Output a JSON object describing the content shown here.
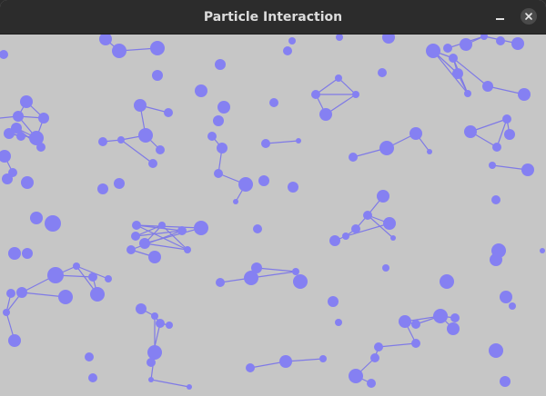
{
  "window": {
    "title": "Particle Interaction",
    "minimize_icon": "minimize-icon",
    "close_icon": "close-icon"
  },
  "colors": {
    "titlebar": "#2c2c2c",
    "title_text": "#dcdcdc",
    "canvas_bg": "#c6c6c6",
    "particle": "#8580f2",
    "link": "#7f7ae6"
  },
  "simulation": {
    "particles": [
      [
        116,
        43,
        7
      ],
      [
        131,
        56,
        8
      ],
      [
        173,
        53,
        8
      ],
      [
        173,
        83,
        6
      ],
      [
        4,
        60,
        5
      ],
      [
        242,
        71,
        6
      ],
      [
        321,
        45,
        4
      ],
      [
        316,
        56,
        5
      ],
      [
        373,
        41,
        4
      ],
      [
        427,
        41,
        7
      ],
      [
        476,
        56,
        8
      ],
      [
        492,
        53,
        5
      ],
      [
        512,
        49,
        7
      ],
      [
        532,
        40,
        4
      ],
      [
        550,
        45,
        5
      ],
      [
        569,
        48,
        7
      ],
      [
        503,
        81,
        6
      ],
      [
        498,
        64,
        5
      ],
      [
        514,
        103,
        4
      ],
      [
        536,
        95,
        6
      ],
      [
        576,
        104,
        7
      ],
      [
        557,
        131,
        5
      ],
      [
        560,
        148,
        6
      ],
      [
        546,
        162,
        5
      ],
      [
        517,
        145,
        7
      ],
      [
        541,
        182,
        4
      ],
      [
        580,
        187,
        7
      ],
      [
        420,
        80,
        5
      ],
      [
        372,
        86,
        4
      ],
      [
        347,
        104,
        5
      ],
      [
        391,
        104,
        4
      ],
      [
        358,
        126,
        7
      ],
      [
        301,
        113,
        5
      ],
      [
        221,
        100,
        7
      ],
      [
        246,
        118,
        7
      ],
      [
        240,
        133,
        6
      ],
      [
        233,
        150,
        5
      ],
      [
        244,
        163,
        6
      ],
      [
        154,
        116,
        7
      ],
      [
        185,
        124,
        5
      ],
      [
        113,
        156,
        5
      ],
      [
        133,
        154,
        4
      ],
      [
        160,
        149,
        8
      ],
      [
        176,
        165,
        5
      ],
      [
        168,
        180,
        5
      ],
      [
        29,
        112,
        7
      ],
      [
        48,
        130,
        6
      ],
      [
        20,
        128,
        6
      ],
      [
        18,
        141,
        6
      ],
      [
        10,
        147,
        6
      ],
      [
        23,
        150,
        5
      ],
      [
        40,
        152,
        8
      ],
      [
        45,
        162,
        5
      ],
      [
        5,
        172,
        7
      ],
      [
        14,
        190,
        5
      ],
      [
        30,
        201,
        7
      ],
      [
        8,
        197,
        6
      ],
      [
        292,
        158,
        5
      ],
      [
        328,
        155,
        3
      ],
      [
        388,
        173,
        5
      ],
      [
        425,
        163,
        8
      ],
      [
        457,
        147,
        7
      ],
      [
        472,
        167,
        3
      ],
      [
        270,
        203,
        8
      ],
      [
        290,
        199,
        6
      ],
      [
        322,
        206,
        6
      ],
      [
        240,
        191,
        5
      ],
      [
        259,
        222,
        3
      ],
      [
        113,
        208,
        6
      ],
      [
        131,
        202,
        6
      ],
      [
        545,
        220,
        5
      ],
      [
        421,
        216,
        7
      ],
      [
        404,
        237,
        5
      ],
      [
        428,
        246,
        7
      ],
      [
        391,
        252,
        5
      ],
      [
        380,
        260,
        4
      ],
      [
        432,
        262,
        3
      ],
      [
        368,
        265,
        6
      ],
      [
        40,
        240,
        7
      ],
      [
        58,
        246,
        9
      ],
      [
        16,
        279,
        7
      ],
      [
        30,
        279,
        6
      ],
      [
        221,
        251,
        8
      ],
      [
        200,
        254,
        5
      ],
      [
        178,
        248,
        4
      ],
      [
        150,
        248,
        5
      ],
      [
        149,
        260,
        5
      ],
      [
        159,
        268,
        6
      ],
      [
        144,
        275,
        5
      ],
      [
        170,
        283,
        7
      ],
      [
        206,
        275,
        4
      ],
      [
        283,
        252,
        5
      ],
      [
        548,
        276,
        8
      ],
      [
        545,
        286,
        7
      ],
      [
        596,
        276,
        3
      ],
      [
        424,
        295,
        4
      ],
      [
        84,
        293,
        4
      ],
      [
        61,
        303,
        9
      ],
      [
        102,
        305,
        5
      ],
      [
        119,
        307,
        4
      ],
      [
        72,
        327,
        8
      ],
      [
        107,
        324,
        8
      ],
      [
        24,
        322,
        6
      ],
      [
        12,
        323,
        5
      ],
      [
        7,
        344,
        4
      ],
      [
        16,
        375,
        7
      ],
      [
        242,
        311,
        5
      ],
      [
        276,
        306,
        8
      ],
      [
        282,
        295,
        6
      ],
      [
        325,
        299,
        4
      ],
      [
        330,
        310,
        8
      ],
      [
        491,
        310,
        8
      ],
      [
        556,
        327,
        7
      ],
      [
        563,
        337,
        4
      ],
      [
        366,
        332,
        6
      ],
      [
        372,
        355,
        4
      ],
      [
        155,
        340,
        6
      ],
      [
        170,
        348,
        4
      ],
      [
        176,
        356,
        5
      ],
      [
        186,
        358,
        4
      ],
      [
        445,
        354,
        7
      ],
      [
        457,
        357,
        5
      ],
      [
        484,
        348,
        8
      ],
      [
        500,
        350,
        5
      ],
      [
        498,
        362,
        7
      ],
      [
        457,
        378,
        5
      ],
      [
        416,
        382,
        5
      ],
      [
        412,
        394,
        5
      ],
      [
        170,
        388,
        8
      ],
      [
        166,
        399,
        5
      ],
      [
        98,
        393,
        5
      ],
      [
        102,
        416,
        5
      ],
      [
        166,
        418,
        3
      ],
      [
        208,
        426,
        3
      ],
      [
        275,
        405,
        5
      ],
      [
        314,
        398,
        7
      ],
      [
        355,
        395,
        4
      ],
      [
        391,
        414,
        8
      ],
      [
        408,
        422,
        5
      ],
      [
        545,
        386,
        8
      ],
      [
        555,
        420,
        6
      ]
    ],
    "links": [
      [
        131,
        56,
        173,
        53
      ],
      [
        116,
        43,
        131,
        56
      ],
      [
        476,
        56,
        503,
        81
      ],
      [
        503,
        81,
        514,
        103
      ],
      [
        476,
        56,
        514,
        103
      ],
      [
        498,
        64,
        536,
        95
      ],
      [
        536,
        95,
        576,
        104
      ],
      [
        492,
        53,
        532,
        40
      ],
      [
        532,
        40,
        569,
        48
      ],
      [
        512,
        49,
        532,
        40
      ],
      [
        503,
        81,
        498,
        64
      ],
      [
        514,
        103,
        498,
        64
      ],
      [
        476,
        56,
        498,
        64
      ],
      [
        546,
        162,
        557,
        131
      ],
      [
        517,
        145,
        557,
        131
      ],
      [
        517,
        145,
        546,
        162
      ],
      [
        541,
        182,
        580,
        187
      ],
      [
        557,
        131,
        560,
        148
      ],
      [
        347,
        104,
        372,
        86
      ],
      [
        372,
        86,
        391,
        104
      ],
      [
        347,
        104,
        391,
        104
      ],
      [
        358,
        126,
        347,
        104
      ],
      [
        358,
        126,
        391,
        104
      ],
      [
        233,
        150,
        244,
        163
      ],
      [
        244,
        163,
        240,
        191
      ],
      [
        240,
        191,
        270,
        203
      ],
      [
        259,
        222,
        270,
        203
      ],
      [
        154,
        116,
        185,
        124
      ],
      [
        154,
        116,
        160,
        149
      ],
      [
        113,
        156,
        133,
        154
      ],
      [
        133,
        154,
        160,
        149
      ],
      [
        160,
        149,
        176,
        165
      ],
      [
        133,
        154,
        168,
        180
      ],
      [
        29,
        112,
        48,
        130
      ],
      [
        29,
        112,
        20,
        128
      ],
      [
        20,
        128,
        48,
        130
      ],
      [
        18,
        141,
        40,
        152
      ],
      [
        10,
        147,
        40,
        152
      ],
      [
        20,
        128,
        40,
        152
      ],
      [
        18,
        141,
        45,
        162
      ],
      [
        10,
        147,
        23,
        150
      ],
      [
        48,
        130,
        40,
        152
      ],
      [
        0,
        130,
        20,
        128
      ],
      [
        5,
        172,
        14,
        190
      ],
      [
        292,
        158,
        328,
        155
      ],
      [
        388,
        173,
        425,
        163
      ],
      [
        425,
        163,
        457,
        147
      ],
      [
        457,
        147,
        472,
        167
      ],
      [
        404,
        237,
        421,
        216
      ],
      [
        391,
        252,
        404,
        237
      ],
      [
        380,
        260,
        391,
        252
      ],
      [
        368,
        265,
        380,
        260
      ],
      [
        404,
        237,
        428,
        246
      ],
      [
        380,
        260,
        428,
        246
      ],
      [
        432,
        262,
        404,
        237
      ],
      [
        150,
        248,
        221,
        251
      ],
      [
        150,
        248,
        200,
        254
      ],
      [
        149,
        260,
        200,
        254
      ],
      [
        159,
        268,
        221,
        251
      ],
      [
        144,
        275,
        200,
        254
      ],
      [
        150,
        248,
        206,
        275
      ],
      [
        178,
        248,
        206,
        275
      ],
      [
        144,
        275,
        170,
        283
      ],
      [
        159,
        268,
        178,
        248
      ],
      [
        149,
        260,
        178,
        248
      ],
      [
        159,
        268,
        206,
        275
      ],
      [
        61,
        303,
        84,
        293
      ],
      [
        84,
        293,
        119,
        307
      ],
      [
        61,
        303,
        102,
        305
      ],
      [
        84,
        293,
        107,
        324
      ],
      [
        61,
        303,
        24,
        322
      ],
      [
        24,
        322,
        7,
        344
      ],
      [
        12,
        323,
        7,
        344
      ],
      [
        7,
        344,
        16,
        375
      ],
      [
        102,
        305,
        107,
        324
      ],
      [
        24,
        322,
        72,
        327
      ],
      [
        242,
        311,
        276,
        306
      ],
      [
        276,
        306,
        325,
        299
      ],
      [
        282,
        295,
        325,
        299
      ],
      [
        155,
        340,
        170,
        348
      ],
      [
        170,
        348,
        176,
        356
      ],
      [
        176,
        356,
        186,
        358
      ],
      [
        170,
        348,
        170,
        388
      ],
      [
        176,
        356,
        166,
        399
      ],
      [
        170,
        388,
        166,
        418
      ],
      [
        166,
        418,
        208,
        426
      ],
      [
        445,
        354,
        484,
        348
      ],
      [
        445,
        354,
        457,
        357
      ],
      [
        457,
        357,
        484,
        348
      ],
      [
        484,
        348,
        500,
        350
      ],
      [
        484,
        348,
        498,
        362
      ],
      [
        457,
        378,
        445,
        354
      ],
      [
        457,
        378,
        416,
        382
      ],
      [
        416,
        382,
        412,
        394
      ],
      [
        412,
        394,
        391,
        414
      ],
      [
        275,
        405,
        314,
        398
      ],
      [
        314,
        398,
        355,
        395
      ],
      [
        391,
        414,
        408,
        422
      ]
    ]
  }
}
